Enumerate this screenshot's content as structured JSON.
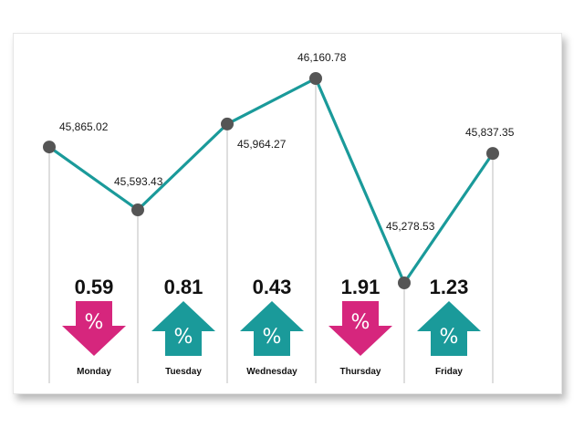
{
  "chart_data": {
    "type": "line",
    "categories": [
      "Monday",
      "Tuesday",
      "Wednesday",
      "Thursday",
      "Friday"
    ],
    "points": [
      {
        "value": 45865.02,
        "label": "45,865.02"
      },
      {
        "value": 45593.43,
        "label": "45,593.43"
      },
      {
        "value": 45964.27,
        "label": "45,964.27"
      },
      {
        "value": 46160.78,
        "label": "46,160.78"
      },
      {
        "value": 45278.53,
        "label": "45,278.53"
      },
      {
        "value": 45837.35,
        "label": "45,837.35"
      }
    ],
    "changes": [
      {
        "day": "Monday",
        "pct": "0.59",
        "direction": "down"
      },
      {
        "day": "Tuesday",
        "pct": "0.81",
        "direction": "up"
      },
      {
        "day": "Wednesday",
        "pct": "0.43",
        "direction": "up"
      },
      {
        "day": "Thursday",
        "pct": "1.91",
        "direction": "down"
      },
      {
        "day": "Friday",
        "pct": "1.23",
        "direction": "up"
      }
    ],
    "percent_symbol": "%",
    "ylim": [
      45278.53,
      46160.78
    ],
    "colors": {
      "line": "#1a9a9a",
      "marker": "#555555",
      "up": "#1a9a9a",
      "down": "#d6267d",
      "vline": "#c8c8c8"
    }
  }
}
